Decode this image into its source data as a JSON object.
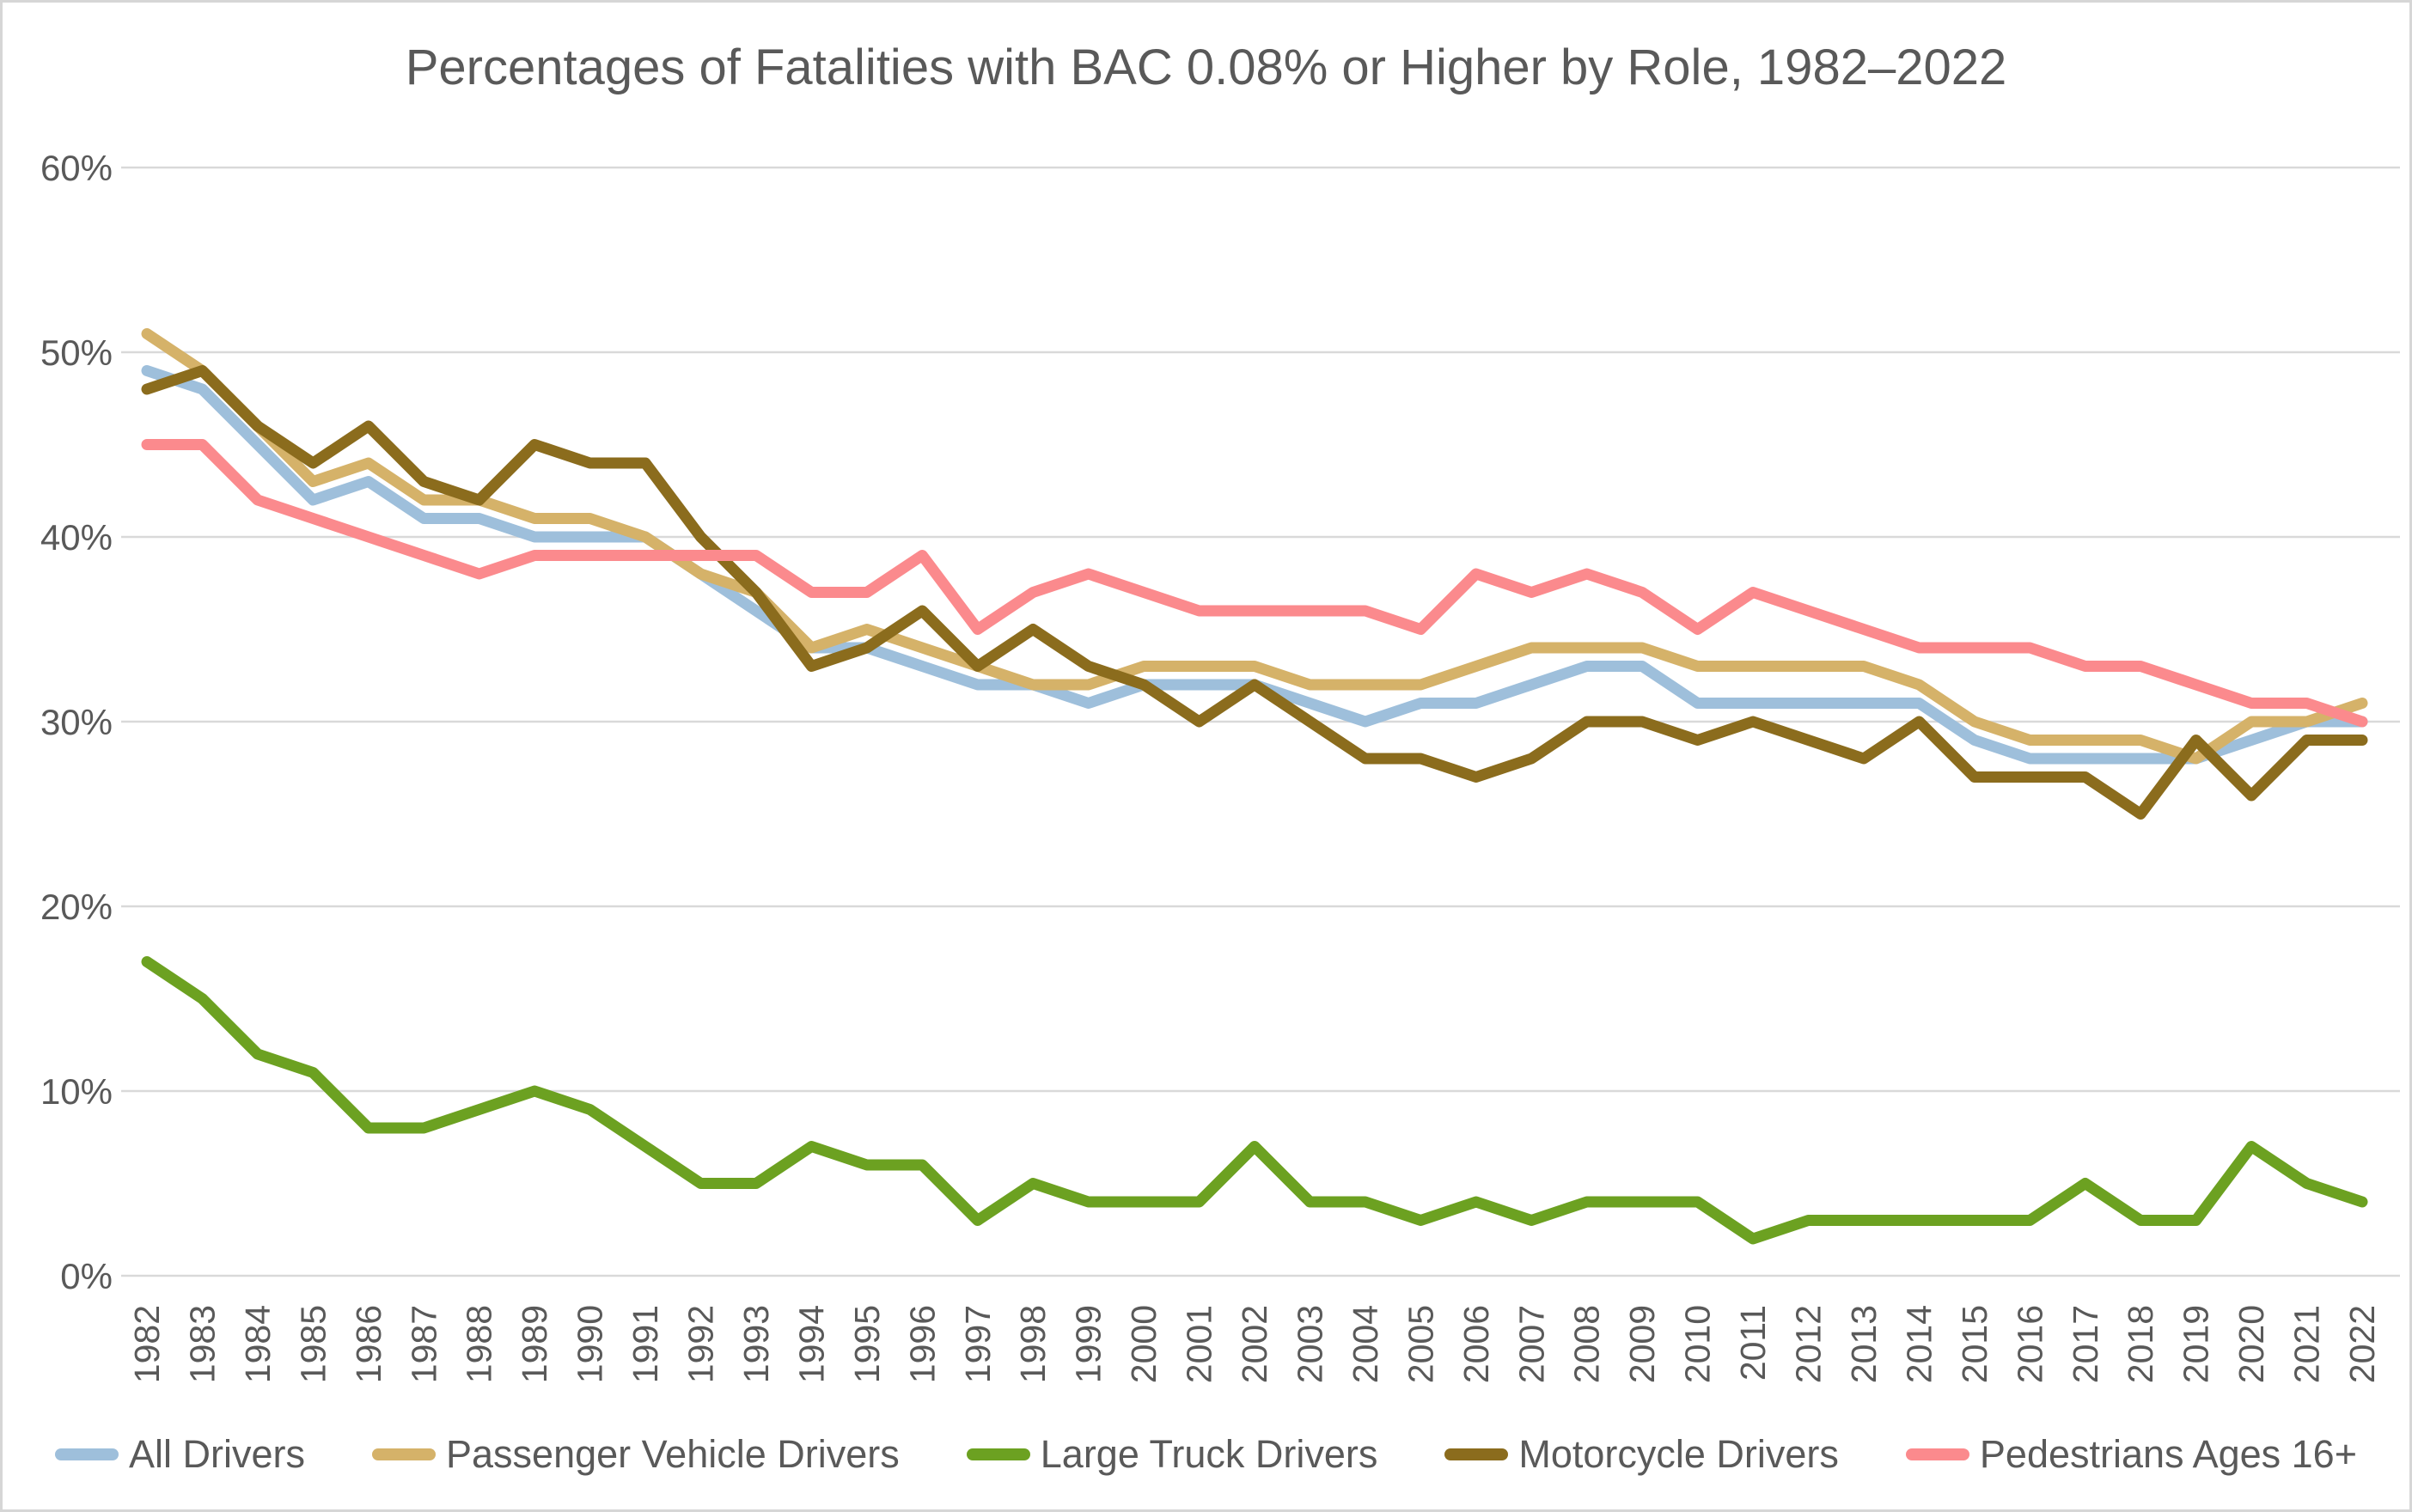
{
  "page": {
    "background": "#ffffff",
    "border_color": "#d6d6d6"
  },
  "chart_data": {
    "type": "line",
    "title": "Percentages of Fatalities with BAC 0.08% or Higher by Role, 1982–2022",
    "xlabel": "",
    "ylabel": "",
    "ylim": [
      0,
      60
    ],
    "grid": true,
    "grid_color": "#d9d9d9",
    "axis_text_color": "#595959",
    "legend_position": "bottom",
    "y_ticks": [
      "0%",
      "10%",
      "20%",
      "30%",
      "40%",
      "50%",
      "60%"
    ],
    "y_tick_values": [
      0,
      10,
      20,
      30,
      40,
      50,
      60
    ],
    "categories": [
      "1982",
      "1983",
      "1984",
      "1985",
      "1986",
      "1987",
      "1988",
      "1989",
      "1990",
      "1991",
      "1992",
      "1993",
      "1994",
      "1995",
      "1996",
      "1997",
      "1998",
      "1999",
      "2000",
      "2001",
      "2002",
      "2003",
      "2004",
      "2005",
      "2006",
      "2007",
      "2008",
      "2009",
      "2010",
      "2011",
      "2012",
      "2013",
      "2014",
      "2015",
      "2016",
      "2017",
      "2018",
      "2019",
      "2020",
      "2021",
      "2022"
    ],
    "series": [
      {
        "name": "All Drivers",
        "color": "#9ebfdb",
        "values": [
          49,
          48,
          45,
          42,
          43,
          41,
          41,
          40,
          40,
          40,
          38,
          36,
          34,
          34,
          33,
          32,
          32,
          31,
          32,
          32,
          32,
          31,
          30,
          31,
          31,
          32,
          33,
          33,
          31,
          31,
          31,
          31,
          31,
          29,
          28,
          28,
          28,
          28,
          29,
          30,
          30
        ]
      },
      {
        "name": "Passenger Vehicle Drivers",
        "color": "#d5b269",
        "values": [
          51,
          49,
          46,
          43,
          44,
          42,
          42,
          41,
          41,
          40,
          38,
          37,
          34,
          35,
          34,
          33,
          32,
          32,
          33,
          33,
          33,
          32,
          32,
          32,
          33,
          34,
          34,
          34,
          33,
          33,
          33,
          33,
          32,
          30,
          29,
          29,
          29,
          28,
          30,
          30,
          31
        ]
      },
      {
        "name": "Large Truck Drivers",
        "color": "#6ca121",
        "values": [
          17,
          15,
          12,
          11,
          8,
          8,
          9,
          10,
          9,
          7,
          5,
          5,
          7,
          6,
          6,
          3,
          5,
          4,
          4,
          4,
          7,
          4,
          4,
          3,
          4,
          3,
          4,
          4,
          4,
          2,
          3,
          3,
          3,
          3,
          3,
          5,
          3,
          3,
          7,
          5,
          4
        ]
      },
      {
        "name": "Motorcycle Drivers",
        "color": "#8b6c1d",
        "values": [
          48,
          49,
          46,
          44,
          46,
          43,
          42,
          45,
          44,
          44,
          40,
          37,
          33,
          34,
          36,
          33,
          35,
          33,
          32,
          30,
          32,
          30,
          28,
          28,
          27,
          28,
          30,
          30,
          29,
          30,
          29,
          28,
          30,
          27,
          27,
          27,
          25,
          29,
          26,
          29,
          29
        ]
      },
      {
        "name": "Pedestrians Ages 16+",
        "color": "#fb8a8d",
        "values": [
          45,
          45,
          42,
          41,
          40,
          39,
          38,
          39,
          39,
          39,
          39,
          39,
          37,
          37,
          39,
          35,
          37,
          38,
          37,
          36,
          36,
          36,
          36,
          35,
          38,
          37,
          38,
          37,
          35,
          37,
          36,
          35,
          34,
          34,
          34,
          33,
          33,
          32,
          31,
          31,
          30
        ]
      }
    ]
  }
}
